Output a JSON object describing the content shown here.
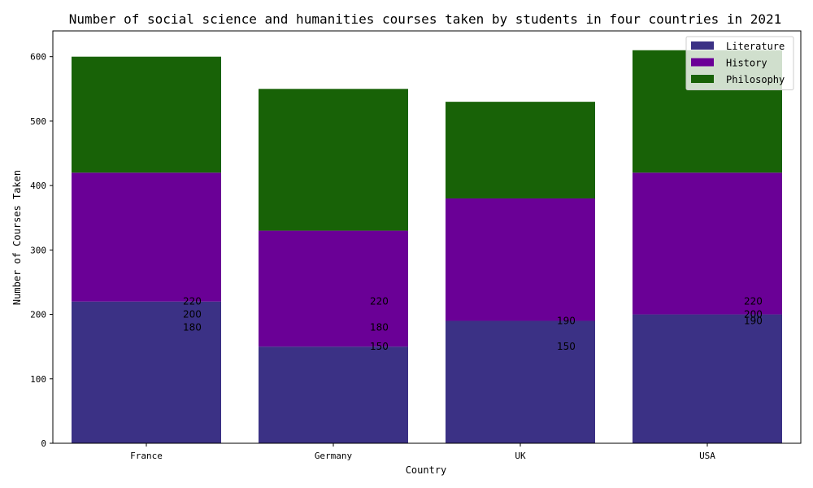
{
  "chart_data": {
    "type": "bar",
    "stacked": true,
    "title": "Number of social science and humanities courses taken by students in four countries in 2021",
    "xlabel": "Country",
    "ylabel": "Number of Courses Taken",
    "categories": [
      "France",
      "Germany",
      "UK",
      "USA"
    ],
    "ylim": [
      0,
      640
    ],
    "yticks": [
      0,
      100,
      200,
      300,
      400,
      500,
      600
    ],
    "grid": false,
    "legend_position": "top-right",
    "series": [
      {
        "name": "Literature",
        "color": "#3b3185",
        "values": [
          220,
          150,
          190,
          200
        ]
      },
      {
        "name": "History",
        "color": "#6a0096",
        "values": [
          200,
          180,
          190,
          220
        ]
      },
      {
        "name": "Philosophy",
        "color": "#186207",
        "values": [
          180,
          220,
          150,
          190
        ]
      }
    ],
    "annotations": [
      [
        "220",
        "200",
        "180"
      ],
      [
        "220",
        "180",
        "150"
      ],
      [
        "190",
        "150"
      ],
      [
        "220",
        "200",
        "190"
      ]
    ]
  }
}
